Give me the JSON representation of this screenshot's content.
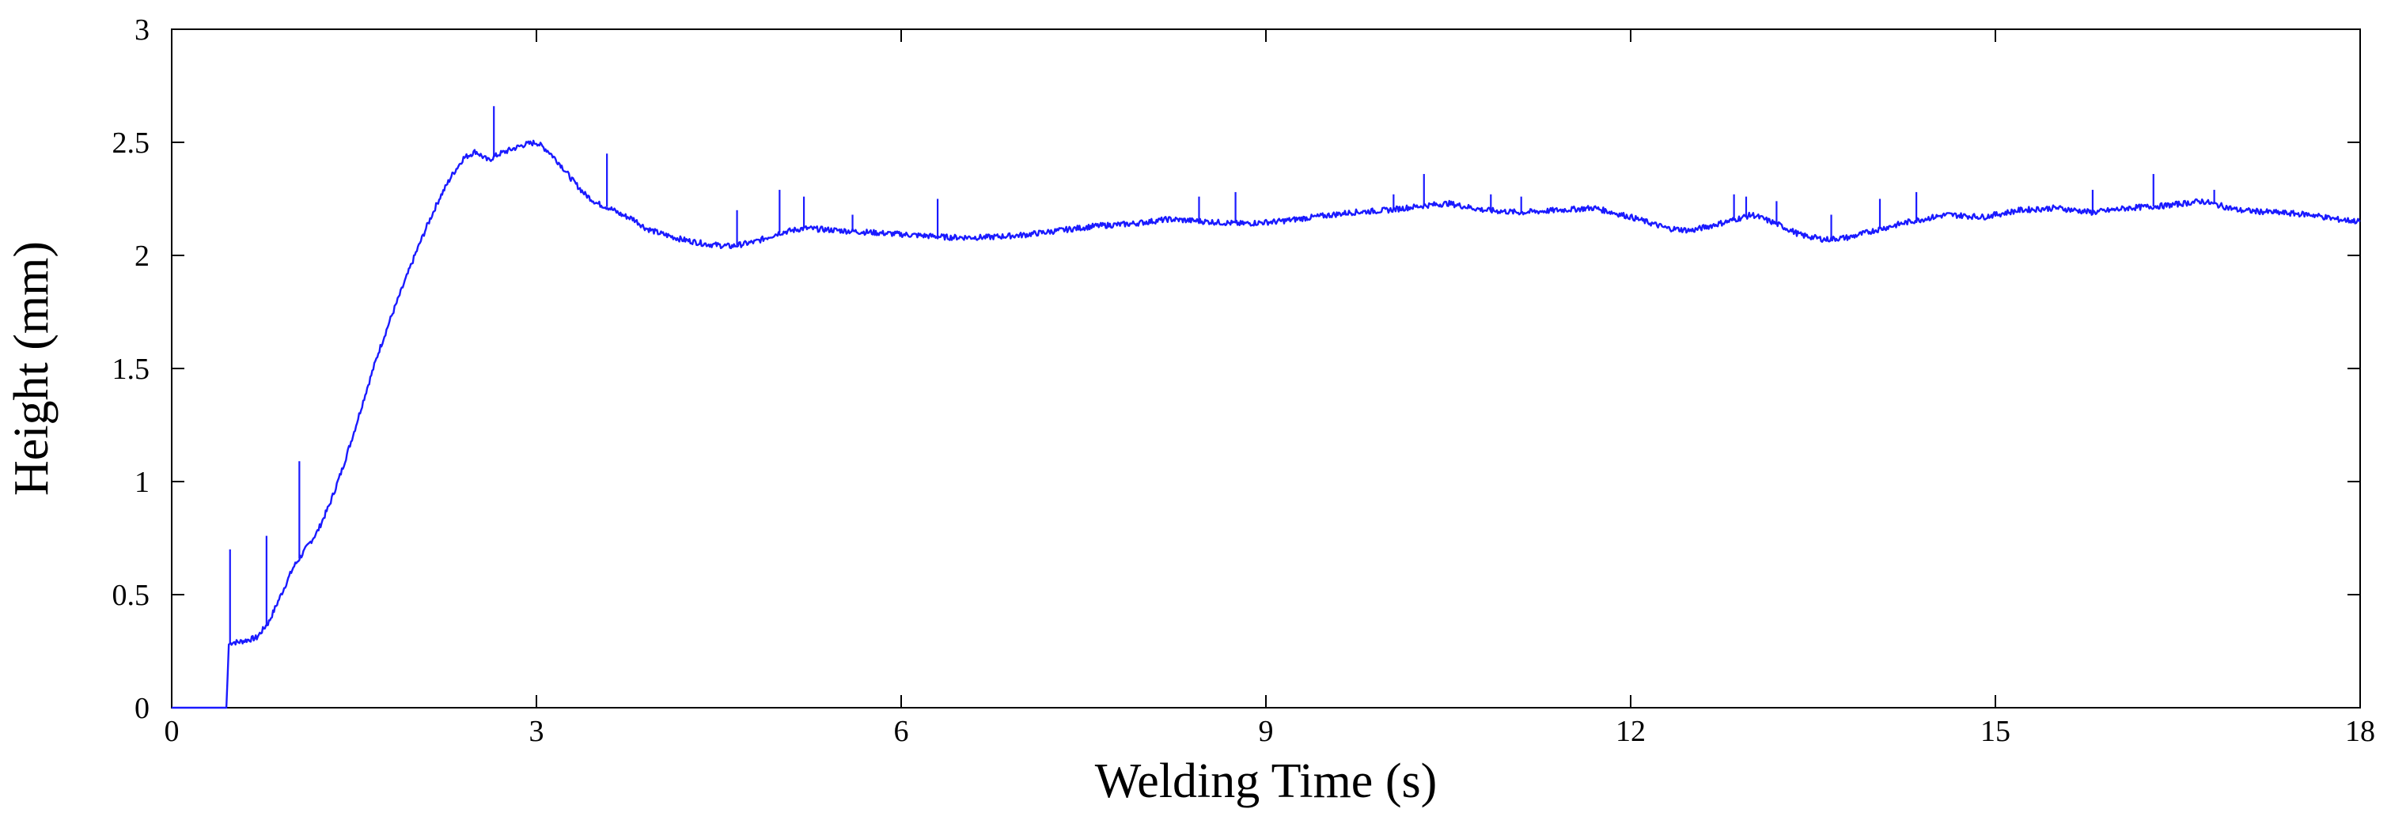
{
  "chart_data": {
    "type": "line",
    "title": "",
    "xlabel": "Welding Time (s)",
    "ylabel": "Height (mm)",
    "xlim": [
      0,
      18
    ],
    "ylim": [
      0,
      3
    ],
    "x_ticks": [
      0,
      3,
      6,
      9,
      12,
      15,
      18
    ],
    "y_ticks": [
      0,
      0.5,
      1,
      1.5,
      2,
      2.5,
      3
    ],
    "x_tick_labels": [
      "0",
      "3",
      "6",
      "9",
      "12",
      "15",
      "18"
    ],
    "y_tick_labels": [
      "0",
      "0.5",
      "1",
      "1.5",
      "2",
      "2.5",
      "3"
    ],
    "grid": false,
    "legend": "none",
    "line_color": "#1a1aff",
    "series": [
      {
        "x": [
          0,
          0.45,
          0.47,
          0.5,
          0.55,
          0.7,
          0.8,
          0.9,
          1.0,
          1.1,
          1.2,
          1.3,
          1.4,
          1.5,
          1.6,
          1.7,
          1.8,
          1.9,
          2.0,
          2.1,
          2.2,
          2.3,
          2.4,
          2.5,
          2.6,
          2.7,
          2.8,
          2.9,
          3.0,
          3.1,
          3.2,
          3.3,
          3.4,
          3.5,
          3.6,
          3.7,
          3.8,
          3.9,
          4.0,
          4.2,
          4.4,
          4.6,
          4.8,
          5.0,
          5.2,
          5.5,
          5.8,
          6.1,
          6.4,
          6.7,
          7.0,
          7.3,
          7.6,
          7.9,
          8.2,
          8.5,
          8.8,
          9.1,
          9.4,
          9.7,
          10.0,
          10.3,
          10.5,
          10.8,
          11.1,
          11.4,
          11.7,
          12.0,
          12.3,
          12.5,
          12.8,
          13.0,
          13.2,
          13.4,
          13.6,
          13.8,
          14.0,
          14.3,
          14.6,
          14.9,
          15.2,
          15.5,
          15.8,
          16.1,
          16.4,
          16.7,
          17.0,
          17.3,
          17.6,
          17.8,
          18.0
        ],
        "y": [
          0,
          0,
          0.28,
          0.29,
          0.29,
          0.31,
          0.38,
          0.5,
          0.62,
          0.7,
          0.78,
          0.9,
          1.05,
          1.22,
          1.4,
          1.57,
          1.72,
          1.86,
          2.0,
          2.13,
          2.25,
          2.35,
          2.43,
          2.46,
          2.42,
          2.45,
          2.47,
          2.49,
          2.5,
          2.46,
          2.4,
          2.33,
          2.27,
          2.23,
          2.21,
          2.18,
          2.16,
          2.12,
          2.1,
          2.07,
          2.05,
          2.04,
          2.06,
          2.1,
          2.12,
          2.11,
          2.1,
          2.09,
          2.08,
          2.08,
          2.09,
          2.11,
          2.13,
          2.14,
          2.16,
          2.15,
          2.14,
          2.15,
          2.17,
          2.19,
          2.2,
          2.22,
          2.23,
          2.2,
          2.19,
          2.2,
          2.21,
          2.17,
          2.12,
          2.11,
          2.15,
          2.18,
          2.14,
          2.09,
          2.07,
          2.08,
          2.11,
          2.15,
          2.18,
          2.17,
          2.2,
          2.21,
          2.19,
          2.21,
          2.22,
          2.24,
          2.2,
          2.19,
          2.18,
          2.16,
          2.15
        ]
      }
    ],
    "spikes": [
      {
        "x": 0.48,
        "y": 0.7
      },
      {
        "x": 0.78,
        "y": 0.76
      },
      {
        "x": 1.05,
        "y": 1.09
      },
      {
        "x": 2.65,
        "y": 2.66
      },
      {
        "x": 3.58,
        "y": 2.45
      },
      {
        "x": 4.65,
        "y": 2.2
      },
      {
        "x": 5.0,
        "y": 2.29
      },
      {
        "x": 5.2,
        "y": 2.26
      },
      {
        "x": 5.6,
        "y": 2.18
      },
      {
        "x": 6.3,
        "y": 2.25
      },
      {
        "x": 8.45,
        "y": 2.26
      },
      {
        "x": 8.75,
        "y": 2.28
      },
      {
        "x": 10.05,
        "y": 2.27
      },
      {
        "x": 10.3,
        "y": 2.36
      },
      {
        "x": 10.85,
        "y": 2.27
      },
      {
        "x": 11.1,
        "y": 2.26
      },
      {
        "x": 12.85,
        "y": 2.27
      },
      {
        "x": 12.95,
        "y": 2.26
      },
      {
        "x": 13.2,
        "y": 2.24
      },
      {
        "x": 13.65,
        "y": 2.18
      },
      {
        "x": 14.05,
        "y": 2.25
      },
      {
        "x": 14.35,
        "y": 2.28
      },
      {
        "x": 15.8,
        "y": 2.29
      },
      {
        "x": 16.3,
        "y": 2.36
      },
      {
        "x": 16.8,
        "y": 2.29
      }
    ]
  }
}
